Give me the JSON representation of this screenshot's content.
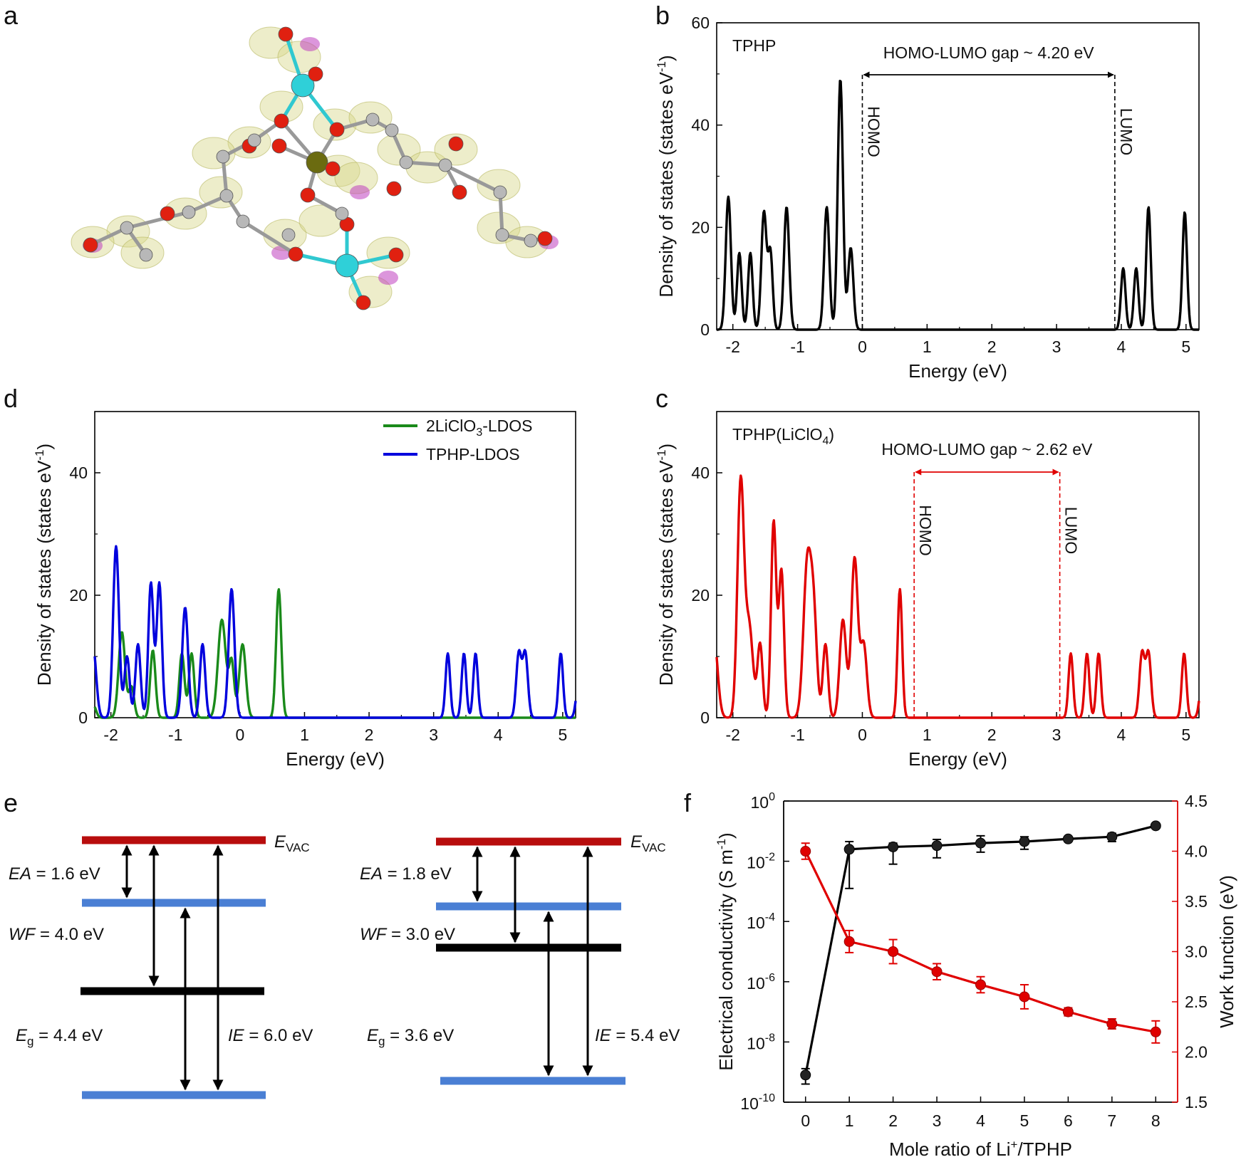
{
  "panels": {
    "a": "a",
    "b": "b",
    "c": "c",
    "d": "d",
    "e": "e",
    "f": "f"
  },
  "colors": {
    "black": "#000000",
    "red": "#e00000",
    "green": "#1a8a1a",
    "blue": "#0000dd",
    "dark_red_level": "#b80d0d",
    "blue_level": "#4a7fd4"
  },
  "chart_data": [
    {
      "panel": "b",
      "type": "line",
      "label": "TPHP",
      "xlabel": "Energy (eV)",
      "ylabel": "Density of states (states eV",
      "ylabel_sup": "-1",
      "ylabel_end": ")",
      "xlim": [
        -2.25,
        5.2
      ],
      "ylim": [
        0,
        60
      ],
      "xticks": [
        -2,
        -1,
        0,
        1,
        2,
        3,
        4,
        5
      ],
      "yticks": [
        0,
        20,
        40,
        60
      ],
      "series": [
        {
          "color": "#000000",
          "peaks": [
            [
              -2.07,
              26,
              0.04
            ],
            [
              -1.9,
              15,
              0.035
            ],
            [
              -1.73,
              15,
              0.035
            ],
            [
              -1.52,
              23,
              0.04
            ],
            [
              -1.42,
              15,
              0.035
            ],
            [
              -1.17,
              24,
              0.04
            ],
            [
              -0.55,
              24,
              0.04
            ],
            [
              -0.34,
              49,
              0.04
            ],
            [
              -0.18,
              16,
              0.04
            ],
            [
              4.03,
              12,
              0.035
            ],
            [
              4.23,
              12,
              0.035
            ],
            [
              4.42,
              24,
              0.035
            ],
            [
              4.98,
              23,
              0.035
            ]
          ]
        }
      ],
      "annotations": {
        "gap": "HOMO-LUMO gap ~ 4.20 eV",
        "homo": "HOMO",
        "lumo": "LUMO",
        "homo_x": 0.0,
        "lumo_x": 3.9
      }
    },
    {
      "panel": "c",
      "type": "line",
      "label": "TPHP(LiClO",
      "label_sub": "4",
      "label_end": ")",
      "xlabel": "Energy (eV)",
      "ylabel": "Density of states (states eV",
      "ylabel_sup": "-1",
      "ylabel_end": ")",
      "xlim": [
        -2.25,
        5.2
      ],
      "ylim": [
        0,
        50
      ],
      "xticks": [
        -2,
        -1,
        0,
        1,
        2,
        3,
        4,
        5
      ],
      "yticks": [
        0,
        20,
        40
      ],
      "series": [
        {
          "color": "#e00000",
          "peaks": [
            [
              -2.3,
              14,
              0.06
            ],
            [
              -1.88,
              38,
              0.05
            ],
            [
              -1.75,
              15,
              0.06
            ],
            [
              -1.58,
              12,
              0.04
            ],
            [
              -1.37,
              32,
              0.04
            ],
            [
              -1.25,
              24,
              0.04
            ],
            [
              -0.85,
              25,
              0.06
            ],
            [
              -0.75,
              15,
              0.05
            ],
            [
              -0.57,
              12,
              0.04
            ],
            [
              -0.3,
              16,
              0.05
            ],
            [
              -0.12,
              26,
              0.05
            ],
            [
              0.02,
              12,
              0.05
            ],
            [
              0.58,
              21,
              0.035
            ],
            [
              3.22,
              10.5,
              0.035
            ],
            [
              3.47,
              10.5,
              0.035
            ],
            [
              3.65,
              10.5,
              0.035
            ],
            [
              4.32,
              10.5,
              0.04
            ],
            [
              4.42,
              10.5,
              0.04
            ],
            [
              4.97,
              10.5,
              0.035
            ],
            [
              5.25,
              6,
              0.04
            ]
          ]
        }
      ],
      "annotations": {
        "gap": "HOMO-LUMO gap ~ 2.62 eV",
        "homo": "HOMO",
        "lumo": "LUMO",
        "homo_x": 0.8,
        "lumo_x": 3.05
      }
    },
    {
      "panel": "d",
      "type": "line",
      "xlabel": "Energy (eV)",
      "ylabel": "Density of states (states eV",
      "ylabel_sup": "-1",
      "ylabel_end": ")",
      "xlim": [
        -2.25,
        5.2
      ],
      "ylim": [
        0,
        50
      ],
      "xticks": [
        -2,
        -1,
        0,
        1,
        2,
        3,
        4,
        5
      ],
      "yticks": [
        0,
        20,
        40
      ],
      "legend": "top-right",
      "series": [
        {
          "name": "2LiClO",
          "name_sub": "3",
          "name_end": "-LDOS",
          "color": "#1a8a1a",
          "peaks": [
            [
              -2.27,
              2,
              0.04
            ],
            [
              -1.83,
              14,
              0.05
            ],
            [
              -1.68,
              5,
              0.04
            ],
            [
              -1.35,
              11,
              0.04
            ],
            [
              -0.9,
              10.5,
              0.04
            ],
            [
              -0.75,
              10.5,
              0.04
            ],
            [
              -0.28,
              16,
              0.06
            ],
            [
              -0.13,
              9,
              0.04
            ],
            [
              0.04,
              12,
              0.05
            ],
            [
              0.6,
              21,
              0.04
            ]
          ]
        },
        {
          "name": "TPHP-LDOS",
          "color": "#0000dd",
          "peaks": [
            [
              -2.28,
              12,
              0.05
            ],
            [
              -1.92,
              28,
              0.045
            ],
            [
              -1.75,
              10,
              0.04
            ],
            [
              -1.58,
              12,
              0.04
            ],
            [
              -1.38,
              22,
              0.04
            ],
            [
              -1.25,
              22,
              0.04
            ],
            [
              -0.85,
              18,
              0.045
            ],
            [
              -0.58,
              12,
              0.04
            ],
            [
              -0.13,
              21,
              0.045
            ],
            [
              3.22,
              10.5,
              0.035
            ],
            [
              3.47,
              10.5,
              0.035
            ],
            [
              3.65,
              10.5,
              0.035
            ],
            [
              4.32,
              10.5,
              0.04
            ],
            [
              4.42,
              10.5,
              0.04
            ],
            [
              4.97,
              10.5,
              0.035
            ],
            [
              5.25,
              6,
              0.04
            ]
          ]
        }
      ]
    },
    {
      "panel": "f",
      "type": "scatter",
      "xlabel": "Mole ratio of Li",
      "xlabel_sup": "+",
      "xlabel_end": "/TPHP",
      "ylabel_left": "Electrical conductivity (S m",
      "ylabel_left_sup": "-1",
      "ylabel_left_end": ")",
      "ylabel_right": "Work function (eV)",
      "x": [
        0,
        1,
        2,
        3,
        4,
        5,
        6,
        7,
        8
      ],
      "xlim": [
        -0.5,
        8.5
      ],
      "left_scale": "log",
      "left_ylim_exp": [
        -10,
        0
      ],
      "left_ytick_exps": [
        "-10",
        "-8",
        "-6",
        "-4",
        "-2",
        "0"
      ],
      "right_ylim": [
        1.5,
        4.5
      ],
      "right_yticks": [
        "1.5",
        "2.0",
        "2.5",
        "3.0",
        "3.5",
        "4.0",
        "4.5"
      ],
      "series": [
        {
          "name": "Electrical conductivity",
          "axis": "left",
          "color": "#000000",
          "values": [
            8e-10,
            0.025,
            0.03,
            0.033,
            0.04,
            0.045,
            0.055,
            0.065,
            0.15
          ],
          "err_low": [
            4e-10,
            0.024,
            0.022,
            0.02,
            0.02,
            0.02,
            0.01,
            0.02,
            0.01
          ],
          "err_high": [
            5e-10,
            0.02,
            0.01,
            0.02,
            0.03,
            0.02,
            0.01,
            0.02,
            0.02
          ]
        },
        {
          "name": "Work function",
          "axis": "right",
          "color": "#e00000",
          "values": [
            4.0,
            3.1,
            3.0,
            2.8,
            2.67,
            2.55,
            2.4,
            2.28,
            2.2
          ],
          "err": [
            0.08,
            0.11,
            0.12,
            0.08,
            0.08,
            0.12,
            0.04,
            0.05,
            0.11
          ]
        }
      ]
    }
  ],
  "panel_e": {
    "left": {
      "evac": "E",
      "evac_sub": "VAC",
      "ea": "EA",
      "ea_val": " = 1.6 eV",
      "wf": "WF",
      "wf_val": " = 4.0 eV",
      "eg": "E",
      "eg_sub": "g",
      "eg_val": " = 4.4 eV",
      "ie": "IE",
      "ie_val": " = 6.0 eV"
    },
    "right": {
      "evac": "E",
      "evac_sub": "VAC",
      "ea": "EA",
      "ea_val": " = 1.8 eV",
      "wf": "WF",
      "wf_val": " = 3.0 eV",
      "eg": "E",
      "eg_sub": "g",
      "eg_val": " = 3.6 eV",
      "ie": "IE",
      "ie_val": " = 5.4 eV"
    }
  }
}
